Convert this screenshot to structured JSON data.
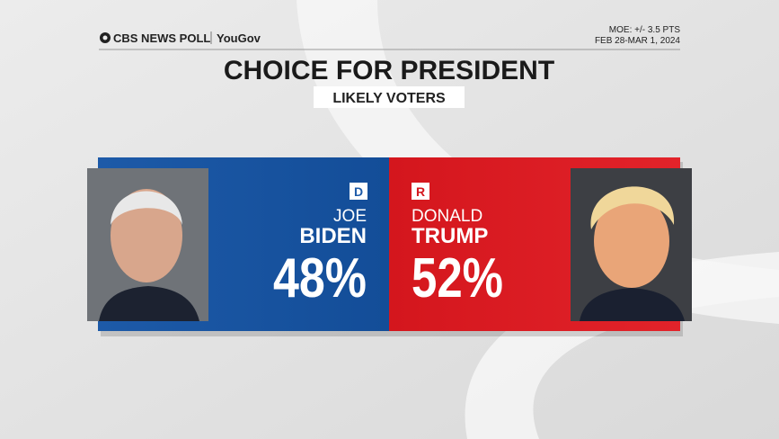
{
  "header": {
    "logo": "CBS NEWS POLL",
    "partner": "YouGov",
    "moe": "MOE: +/- 3.5 PTS",
    "dates": "FEB 28-MAR 1, 2024"
  },
  "title": "CHOICE FOR PRESIDENT",
  "subtitle": "LIKELY VOTERS",
  "candidates": [
    {
      "party": "D",
      "first": "JOE",
      "last": "BIDEN",
      "share": "48%"
    },
    {
      "party": "R",
      "first": "DONALD",
      "last": "TRUMP",
      "share": "52%"
    }
  ]
}
